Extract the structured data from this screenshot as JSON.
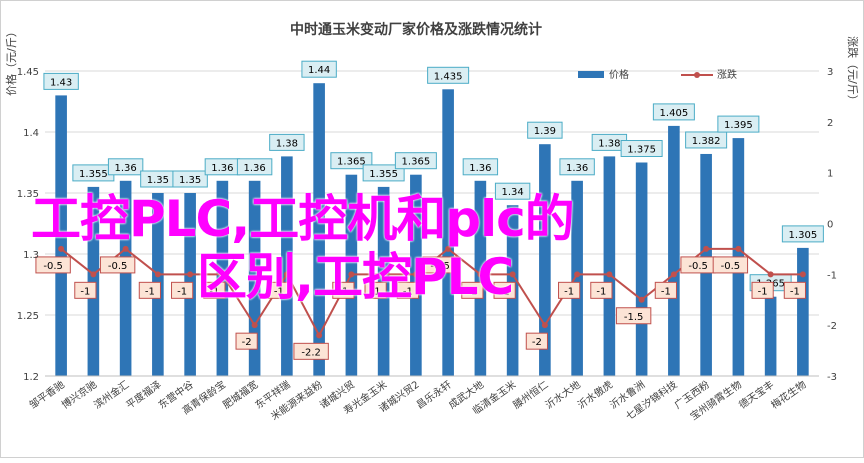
{
  "chart_data": {
    "type": "bar+line",
    "title": "中时通玉米变动厂家价格及涨跌情况统计",
    "ylabel_left": "价格（元/斤）",
    "ylabel_right": "涨跌（元/斤）",
    "ylim_left": [
      1.2,
      1.45
    ],
    "yticks_left": [
      "1.2",
      "1.25",
      "1.3",
      "1.35",
      "1.4",
      "1.45"
    ],
    "ylim_right": [
      -3,
      3
    ],
    "yticks_right": [
      "-3",
      "-2",
      "-1",
      "0",
      "1",
      "2",
      "3"
    ],
    "legend_position": "top-right",
    "colors": {
      "bar": "#2e75b6",
      "line": "#c0504d",
      "label_fill": "#daeef3",
      "label_border": "#4bacc6",
      "line_label_fill": "#fce4d6",
      "line_label_border": "#c0504d"
    },
    "categories": [
      "邹平香驰",
      "博兴京驰",
      "滨州金汇",
      "平度福泽",
      "东营中谷",
      "高青保龄宝",
      "肥城福宽",
      "东平祥瑞",
      "米能源来益粉",
      "诸城兴贸",
      "寿光金玉米",
      "诸城兴贸2",
      "昌乐永轩",
      "成武大地",
      "临清金玉米",
      "滕州恒仁",
      "沂水大地",
      "沂水傲虎",
      "沂水鲁洲",
      "七星汐锦科技",
      "广玉西粉",
      "宝州骑霄生物",
      "德天宝丰",
      "梅花生物"
    ],
    "series": [
      {
        "name": "价格",
        "type": "bar",
        "values": [
          1.43,
          1.355,
          1.36,
          1.35,
          1.35,
          1.36,
          1.36,
          1.38,
          1.44,
          1.365,
          1.355,
          1.365,
          1.435,
          1.36,
          1.34,
          1.39,
          1.36,
          1.38,
          1.375,
          1.405,
          1.382,
          1.395,
          1.265,
          1.305
        ],
        "labels": [
          "1.43",
          "1.355",
          "1.36",
          "1.35",
          "1.35",
          "1.36",
          "1.36",
          "1.38",
          "1.44",
          "1.365",
          "1.355",
          "1.365",
          "1.435",
          "1.36",
          "1.34",
          "1.39",
          "1.36",
          "1.38",
          "1.375",
          "1.405",
          "1.382",
          "1.395",
          "1.265",
          "1.305"
        ]
      },
      {
        "name": "涨跌",
        "type": "line",
        "values": [
          -0.5,
          -1,
          -0.5,
          -1,
          -1,
          -1,
          -2,
          -1,
          -2.2,
          -1,
          -1,
          -1,
          -0.5,
          -1,
          -1,
          -2,
          -1,
          -1,
          -1.5,
          -1,
          -0.5,
          -0.5,
          -1,
          -1
        ],
        "labels": [
          "-0.5",
          "-1",
          "-0.5",
          "-1",
          "-1",
          "-1",
          "-2",
          "-1",
          "-2.2",
          "-1",
          "-1",
          "-1",
          "-0.5",
          "-1",
          "-1",
          "-2",
          "-1",
          "-1",
          "-1.5",
          "-1",
          "-0.5",
          "-0.5",
          "-1",
          "-1"
        ]
      }
    ]
  },
  "overlay": {
    "line1": "工控PLC,工控机和plc的",
    "line2": "区别,工控PLC"
  }
}
